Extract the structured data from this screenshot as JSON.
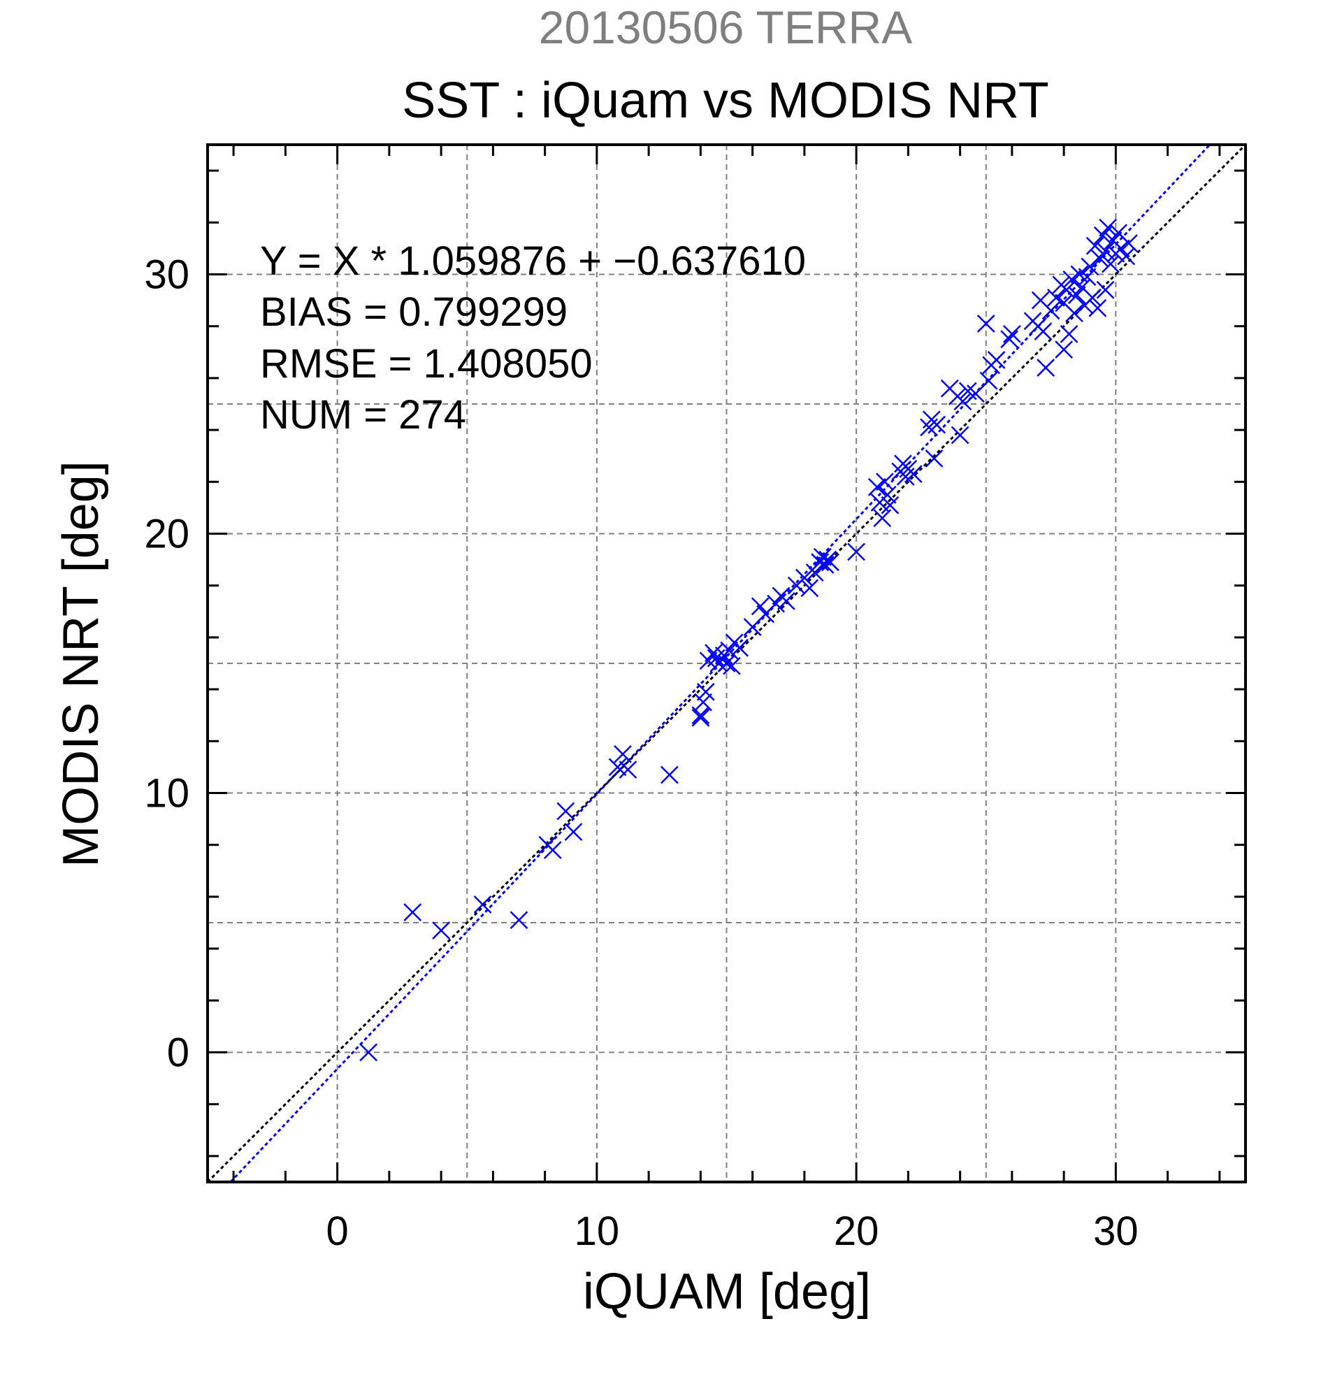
{
  "chart_data": {
    "type": "scatter",
    "supertitle": "20130506 TERRA",
    "title": "SST : iQuam vs MODIS NRT",
    "xlabel": "iQUAM [deg]",
    "ylabel": "MODIS NRT [deg]",
    "xlim": [
      -5,
      35
    ],
    "ylim": [
      -5,
      35
    ],
    "xticks": [
      0,
      10,
      20,
      30
    ],
    "yticks": [
      0,
      10,
      20,
      30
    ],
    "grid": true,
    "stats": [
      "Y = X * 1.059876 + −0.637610",
      "BIAS = 0.799299",
      "RMSE = 1.408050",
      "NUM = 274"
    ],
    "lines": [
      {
        "kind": "one-to-one",
        "slope": 1,
        "intercept": 0,
        "color": "#000000"
      },
      {
        "kind": "regression",
        "slope": 1.059876,
        "intercept": -0.63761,
        "color": "#0000ff"
      }
    ],
    "marker": "x",
    "marker_color": "#0000ff",
    "points": [
      [
        1.2,
        0.0
      ],
      [
        2.9,
        5.4
      ],
      [
        4.0,
        4.7
      ],
      [
        5.6,
        5.7
      ],
      [
        7.0,
        5.1
      ],
      [
        8.1,
        8.0
      ],
      [
        8.3,
        7.8
      ],
      [
        8.8,
        9.3
      ],
      [
        9.1,
        8.5
      ],
      [
        10.8,
        11.0
      ],
      [
        11.0,
        11.5
      ],
      [
        11.2,
        10.9
      ],
      [
        12.8,
        10.7
      ],
      [
        14.0,
        13.0
      ],
      [
        14.0,
        12.9
      ],
      [
        14.1,
        13.5
      ],
      [
        14.2,
        13.9
      ],
      [
        14.3,
        15.1
      ],
      [
        14.5,
        15.4
      ],
      [
        14.6,
        15.2
      ],
      [
        14.7,
        15.0
      ],
      [
        14.9,
        15.3
      ],
      [
        15.0,
        15.0
      ],
      [
        15.1,
        15.5
      ],
      [
        15.2,
        14.9
      ],
      [
        15.3,
        15.8
      ],
      [
        15.5,
        15.6
      ],
      [
        16.0,
        16.4
      ],
      [
        16.3,
        17.2
      ],
      [
        16.5,
        16.9
      ],
      [
        16.9,
        17.3
      ],
      [
        17.1,
        17.6
      ],
      [
        17.3,
        17.4
      ],
      [
        17.7,
        18.0
      ],
      [
        18.0,
        18.3
      ],
      [
        18.2,
        17.9
      ],
      [
        18.4,
        18.5
      ],
      [
        18.6,
        18.9
      ],
      [
        18.7,
        19.1
      ],
      [
        18.8,
        18.8
      ],
      [
        18.9,
        19.0
      ],
      [
        19.0,
        18.9
      ],
      [
        20.0,
        19.3
      ],
      [
        20.8,
        21.8
      ],
      [
        20.9,
        21.2
      ],
      [
        21.0,
        20.6
      ],
      [
        21.1,
        22.0
      ],
      [
        21.2,
        21.5
      ],
      [
        21.3,
        21.1
      ],
      [
        21.7,
        22.4
      ],
      [
        21.8,
        22.7
      ],
      [
        21.9,
        22.2
      ],
      [
        22.0,
        22.5
      ],
      [
        22.2,
        22.3
      ],
      [
        22.8,
        24.1
      ],
      [
        22.9,
        24.4
      ],
      [
        23.0,
        22.9
      ],
      [
        23.1,
        24.2
      ],
      [
        23.6,
        25.6
      ],
      [
        23.9,
        25.3
      ],
      [
        24.0,
        23.8
      ],
      [
        24.1,
        25.1
      ],
      [
        24.3,
        25.5
      ],
      [
        24.6,
        25.4
      ],
      [
        25.0,
        28.1
      ],
      [
        25.1,
        25.9
      ],
      [
        25.2,
        26.5
      ],
      [
        25.4,
        26.7
      ],
      [
        25.9,
        27.5
      ],
      [
        26.0,
        27.7
      ],
      [
        26.8,
        28.2
      ],
      [
        27.0,
        28.0
      ],
      [
        27.2,
        27.8
      ],
      [
        27.1,
        29.0
      ],
      [
        27.3,
        26.4
      ],
      [
        27.5,
        28.6
      ],
      [
        27.7,
        29.1
      ],
      [
        27.9,
        29.6
      ],
      [
        28.0,
        27.1
      ],
      [
        28.0,
        28.9
      ],
      [
        28.1,
        29.4
      ],
      [
        28.2,
        27.7
      ],
      [
        28.3,
        29.8
      ],
      [
        28.4,
        28.5
      ],
      [
        28.5,
        29.2
      ],
      [
        28.6,
        30.0
      ],
      [
        28.7,
        29.5
      ],
      [
        28.8,
        28.8
      ],
      [
        28.9,
        29.9
      ],
      [
        29.0,
        30.3
      ],
      [
        29.1,
        29.1
      ],
      [
        29.2,
        31.1
      ],
      [
        29.3,
        28.7
      ],
      [
        29.4,
        30.6
      ],
      [
        29.5,
        31.5
      ],
      [
        29.6,
        30.9
      ],
      [
        29.6,
        29.4
      ],
      [
        29.7,
        31.8
      ],
      [
        29.8,
        30.4
      ],
      [
        29.9,
        31.3
      ],
      [
        30.0,
        30.8
      ],
      [
        30.1,
        31.6
      ],
      [
        30.2,
        31.0
      ],
      [
        30.4,
        30.7
      ],
      [
        30.5,
        31.2
      ]
    ]
  }
}
